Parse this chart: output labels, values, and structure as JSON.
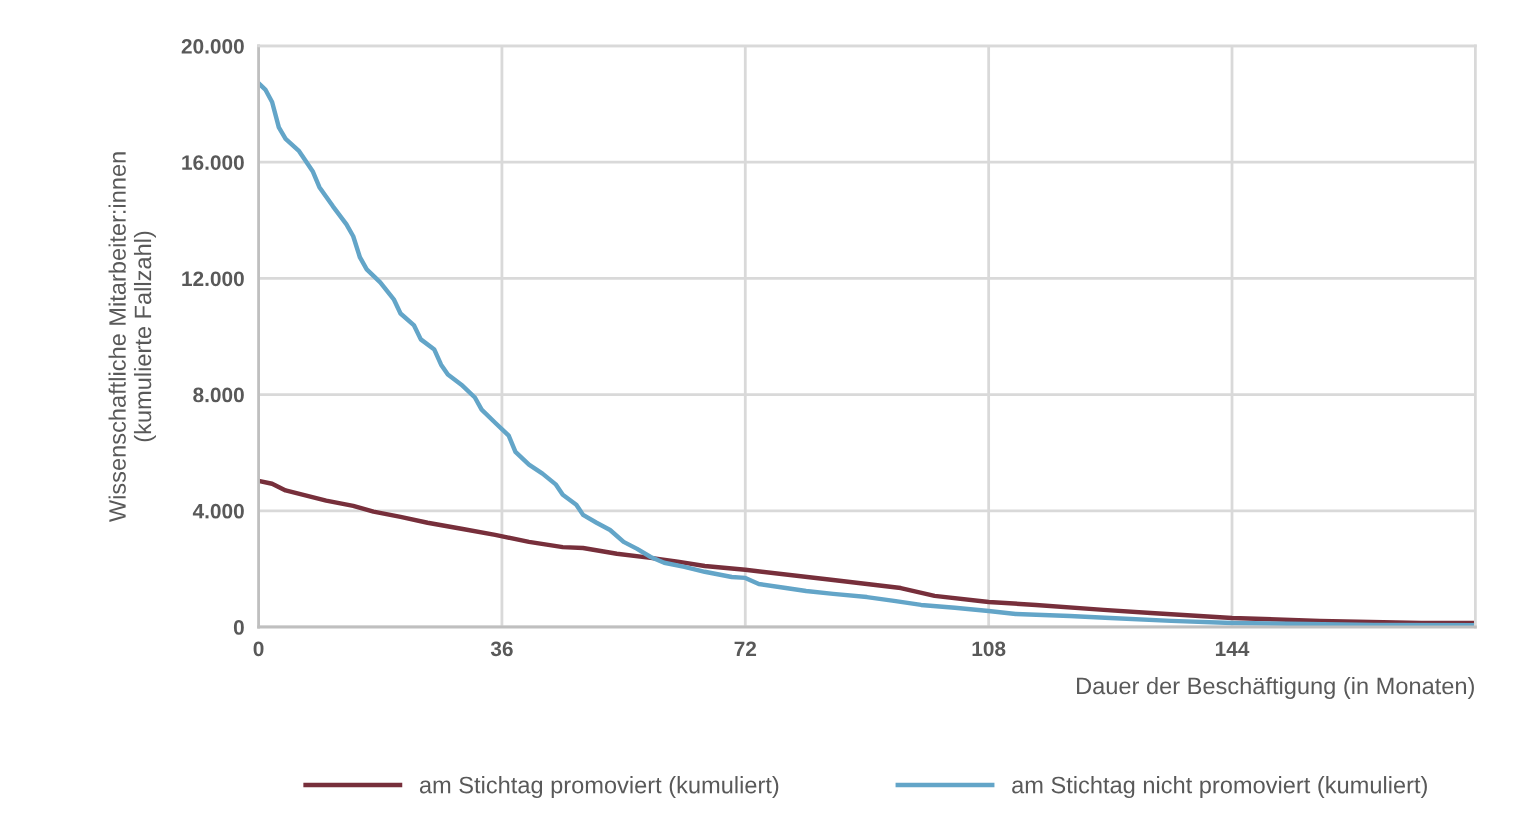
{
  "chart_data": {
    "type": "line",
    "xlabel": "Dauer der Beschäftigung (in Monaten)",
    "ylabel": "Wissenschaftliche Mitarbeiter:innen\n(kumulierte Fallzahl)",
    "xlim": [
      0,
      180
    ],
    "xticks": [
      0,
      36,
      72,
      108,
      144
    ],
    "ylim": [
      0,
      20000
    ],
    "yticks": [
      {
        "value": 0,
        "label": "0"
      },
      {
        "value": 4000,
        "label": "4.000"
      },
      {
        "value": 8000,
        "label": "8.000"
      },
      {
        "value": 12000,
        "label": "12.000"
      },
      {
        "value": 16000,
        "label": "16.000"
      },
      {
        "value": 20000,
        "label": "20.000"
      }
    ],
    "grid": true,
    "legend": "bottom",
    "marker": "none",
    "line_style": "solid",
    "series": [
      {
        "name": "am Stichtag promoviert (kumuliert)",
        "color": "#772f3b",
        "x": [
          0,
          2,
          4,
          10,
          14,
          17,
          21,
          25,
          30,
          35,
          40,
          45,
          48,
          53,
          58,
          62,
          66,
          72,
          85,
          95,
          100,
          108,
          115,
          125,
          132,
          144,
          157,
          172,
          180
        ],
        "values": [
          5030,
          4930,
          4700,
          4350,
          4170,
          3970,
          3790,
          3590,
          3380,
          3170,
          2930,
          2750,
          2720,
          2520,
          2380,
          2250,
          2100,
          1970,
          1620,
          1340,
          1070,
          860,
          760,
          590,
          480,
          310,
          210,
          140,
          140
        ]
      },
      {
        "name": "am Stichtag nicht promoviert (kumuliert)",
        "color": "#63a5c8",
        "x": [
          0,
          1,
          2,
          3,
          4,
          6,
          8,
          9,
          11,
          13,
          14,
          15,
          16,
          18,
          20,
          21,
          23,
          24,
          26,
          27,
          28,
          30,
          32,
          33,
          35,
          37,
          38,
          40,
          42,
          44,
          45,
          47,
          48,
          50,
          52,
          54,
          56,
          58,
          60,
          63,
          66,
          70,
          72,
          74,
          78,
          81,
          85,
          90,
          94,
          98,
          103,
          108,
          112,
          120,
          126,
          135,
          144,
          155,
          165,
          180
        ],
        "values": [
          18720,
          18500,
          18070,
          17200,
          16800,
          16380,
          15690,
          15140,
          14480,
          13860,
          13450,
          12720,
          12310,
          11860,
          11280,
          10790,
          10380,
          9900,
          9550,
          9030,
          8690,
          8340,
          7900,
          7480,
          7030,
          6590,
          6030,
          5590,
          5280,
          4900,
          4550,
          4210,
          3860,
          3590,
          3340,
          2930,
          2690,
          2410,
          2210,
          2070,
          1900,
          1720,
          1690,
          1480,
          1340,
          1240,
          1140,
          1030,
          900,
          760,
          660,
          550,
          450,
          380,
          310,
          210,
          140,
          100,
          70,
          60
        ]
      }
    ]
  }
}
